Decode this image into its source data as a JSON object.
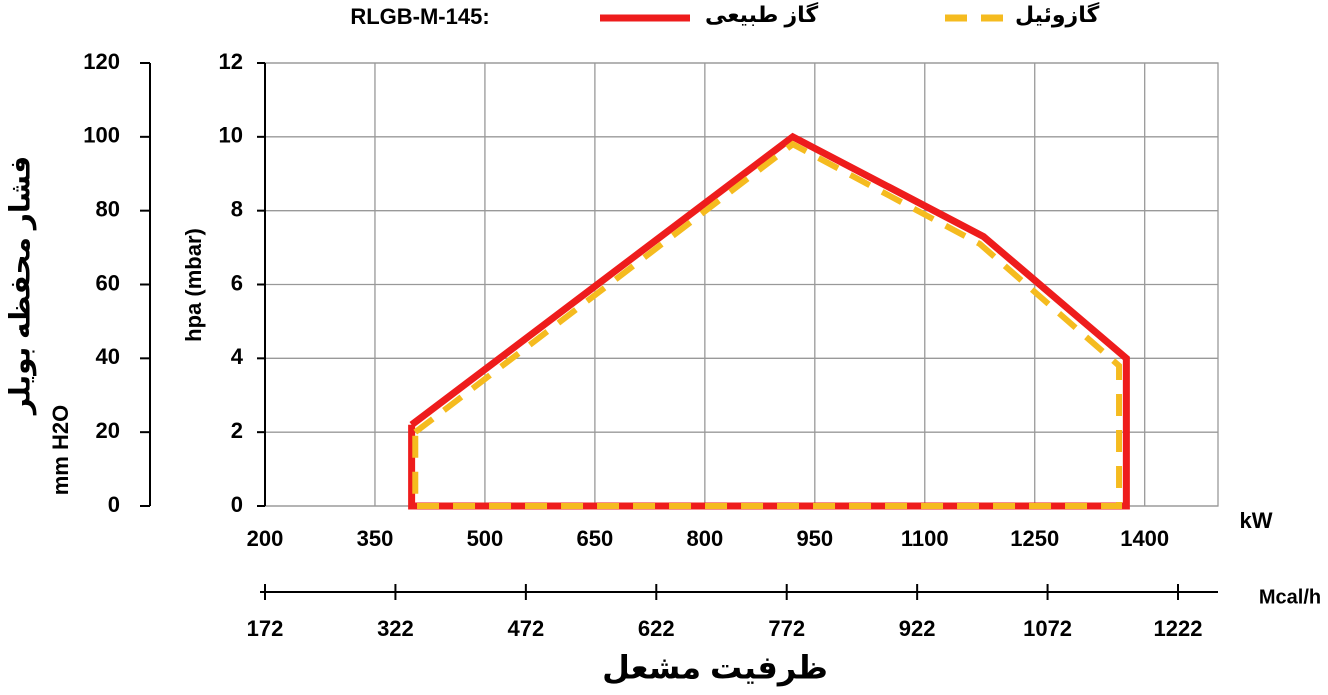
{
  "chart_data": {
    "type": "line",
    "title": "RLGB-M-145:",
    "x_label": "ظرفیت مشعل",
    "x_unit": "kW",
    "x2_unit": "Mcal/h",
    "y_label": "hpa (mbar)",
    "y2_unit": "mm H2O",
    "y2_label": "فشار محفظه بویلر",
    "xlim": [
      200,
      1500
    ],
    "xticks": [
      200,
      350,
      500,
      650,
      800,
      950,
      1100,
      1250,
      1400
    ],
    "x2lim": [
      172,
      1268
    ],
    "x2ticks": [
      172,
      322,
      472,
      622,
      772,
      922,
      1072,
      1222
    ],
    "ylim": [
      0,
      12
    ],
    "yticks": [
      0,
      2,
      4,
      6,
      8,
      10,
      12
    ],
    "y2lim": [
      0,
      120
    ],
    "y2ticks": [
      0,
      20,
      40,
      60,
      80,
      100,
      120
    ],
    "grid": true,
    "series": [
      {
        "name": "گاز طبیعی",
        "color": "#ee1c1c",
        "dashed": false,
        "x": [
          400,
          920,
          1180,
          1375,
          1375,
          400,
          400
        ],
        "values": [
          2.2,
          10,
          7.3,
          4,
          0,
          0,
          2.2
        ]
      },
      {
        "name": "گازوئیل",
        "color": "#f5bb1f",
        "dashed": true,
        "x": [
          405,
          920,
          1175,
          1365,
          1365,
          405,
          405
        ],
        "values": [
          2.0,
          9.8,
          7.1,
          3.8,
          0,
          0,
          2.0
        ]
      }
    ]
  }
}
